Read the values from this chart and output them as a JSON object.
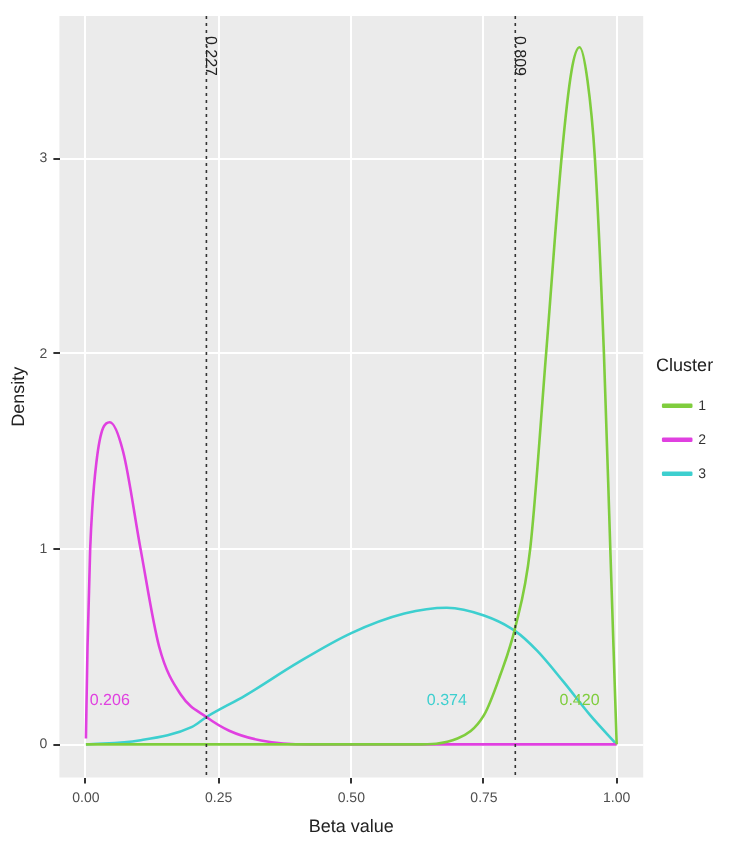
{
  "chart_data": {
    "type": "line",
    "xlabel": "Beta value",
    "ylabel": "Density",
    "legend_title": "Cluster",
    "xlim": [
      -0.05,
      1.05
    ],
    "xticks": [
      {
        "value": 0,
        "label": "0.00"
      },
      {
        "value": 0.25,
        "label": "0.25"
      },
      {
        "value": 0.5,
        "label": "0.50"
      },
      {
        "value": 0.75,
        "label": "0.75"
      },
      {
        "value": 1,
        "label": "1.00"
      }
    ],
    "ylim": [
      -0.17,
      3.73
    ],
    "yticks": [
      0,
      1,
      2,
      3
    ],
    "grid": true,
    "legend": "right",
    "marker": "none",
    "line_style": "solid",
    "series": [
      {
        "name": "1",
        "color": "#7fcd3d",
        "x": [
          0,
          0.3,
          0.5,
          0.62,
          0.7,
          0.75,
          0.78,
          0.809,
          0.837,
          0.867,
          0.896,
          0.915,
          0.93,
          0.945,
          0.959,
          0.976,
          0.988,
          1
        ],
        "values": [
          0,
          0,
          0,
          0,
          0.03,
          0.15,
          0.35,
          0.6,
          1.0,
          2.0,
          3.0,
          3.45,
          3.57,
          3.4,
          3.0,
          2.0,
          1.0,
          0
        ]
      },
      {
        "name": "2",
        "color": "#e040e0",
        "x": [
          0,
          0.003,
          0.008,
          0.02,
          0.045,
          0.07,
          0.103,
          0.138,
          0.18,
          0.227,
          0.27,
          0.33,
          0.42,
          1
        ],
        "values": [
          0.03,
          0.5,
          1.0,
          1.45,
          1.65,
          1.5,
          1.0,
          0.5,
          0.25,
          0.14,
          0.07,
          0.02,
          0,
          0
        ]
      },
      {
        "name": "3",
        "color": "#3dcfcf",
        "x": [
          0,
          0.1,
          0.2,
          0.227,
          0.3,
          0.4,
          0.5,
          0.6,
          0.68,
          0.75,
          0.809,
          0.85,
          0.9,
          0.95,
          1
        ],
        "values": [
          0,
          0.02,
          0.09,
          0.14,
          0.25,
          0.42,
          0.57,
          0.67,
          0.7,
          0.66,
          0.58,
          0.48,
          0.32,
          0.15,
          0
        ]
      }
    ],
    "ref_lines": [
      {
        "axis": "x",
        "value": 0.227,
        "label": "0.227",
        "line_style": "dotted"
      },
      {
        "axis": "x",
        "value": 0.809,
        "label": "0.809",
        "line_style": "dotted"
      }
    ],
    "annotations": [
      "0.420",
      "0.206",
      "0.374"
    ]
  }
}
